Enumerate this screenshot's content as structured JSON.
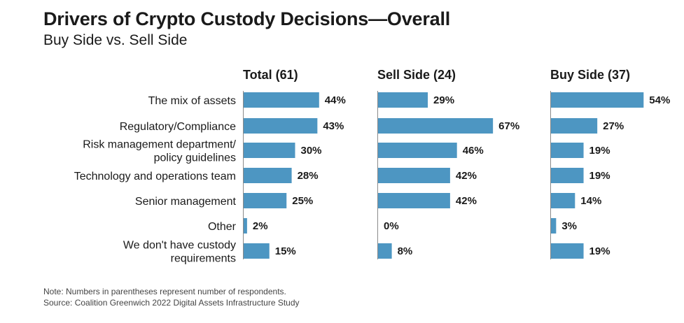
{
  "header": {
    "title": "Drivers of Crypto Custody Decisions—Overall",
    "subtitle": "Buy Side vs. Sell Side"
  },
  "footer": {
    "note": "Note: Numbers in parentheses represent number of respondents.",
    "source": "Source: Coalition Greenwich 2022 Digital Assets Infrastructure Study"
  },
  "chart_data": {
    "type": "bar",
    "orientation": "horizontal",
    "title": "Drivers of Crypto Custody Decisions—Overall",
    "subtitle": "Buy Side vs. Sell Side",
    "unit": "%",
    "categories": [
      [
        "The mix of assets"
      ],
      [
        "Regulatory/Compliance"
      ],
      [
        "Risk management department/",
        "policy guidelines"
      ],
      [
        "Technology and operations team"
      ],
      [
        "Senior management"
      ],
      [
        "Other"
      ],
      [
        "We don't have custody",
        "requirements"
      ]
    ],
    "series": [
      {
        "name": "Total (61)",
        "values": [
          44,
          43,
          30,
          28,
          25,
          2,
          15
        ]
      },
      {
        "name": "Sell Side (24)",
        "values": [
          29,
          67,
          46,
          42,
          42,
          0,
          8
        ]
      },
      {
        "name": "Buy Side (37)",
        "values": [
          54,
          27,
          19,
          19,
          14,
          3,
          19
        ]
      }
    ],
    "xlim": [
      0,
      70
    ],
    "grid": false,
    "legend": "none",
    "bar_color": "#4d96c2"
  }
}
